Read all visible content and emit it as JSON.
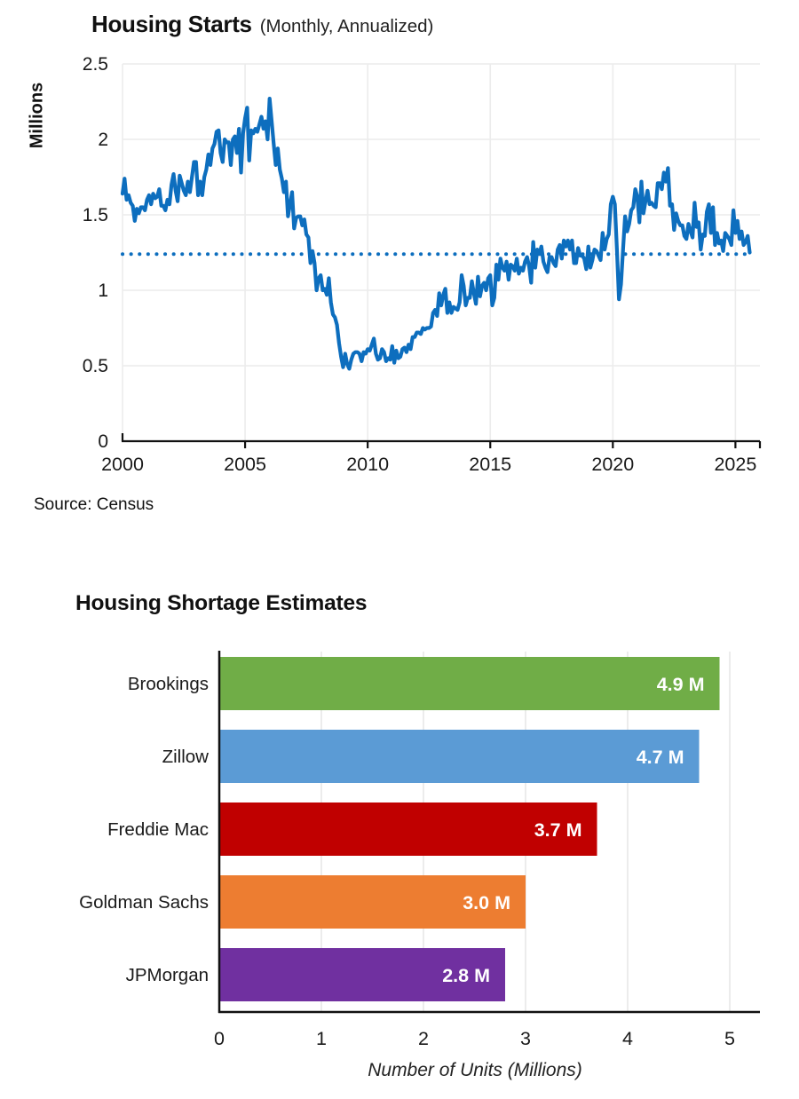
{
  "accent_colors": {
    "line_blue": "#0D6EBE",
    "grid_gray": "#ececec",
    "axis_black": "#111111",
    "bar_value_text": "#ffffff"
  },
  "chart_data": [
    {
      "type": "line",
      "title": "Housing Starts",
      "subtitle": "(Monthly, Annualized)",
      "ylabel": "Millions",
      "source": "Source: Census",
      "line_color": "#0D6EBE",
      "grid": true,
      "x_domain": [
        2000,
        2026
      ],
      "ylim": [
        0,
        2.5
      ],
      "x_ticks": [
        2000,
        2005,
        2010,
        2015,
        2020,
        2025
      ],
      "y_ticks": [
        0,
        0.5,
        1,
        1.5,
        2,
        2.5
      ],
      "reference_line": {
        "value": 1.24,
        "style": "dotted",
        "color": "#0D6EBE"
      },
      "series": [
        {
          "name": "Housing Starts (millions of units, SAAR)",
          "start_year": 2000,
          "frequency": "monthly",
          "values": [
            1.64,
            1.74,
            1.6,
            1.63,
            1.58,
            1.56,
            1.46,
            1.54,
            1.51,
            1.55,
            1.55,
            1.53,
            1.6,
            1.63,
            1.57,
            1.64,
            1.61,
            1.62,
            1.67,
            1.56,
            1.56,
            1.53,
            1.6,
            1.57,
            1.7,
            1.77,
            1.66,
            1.59,
            1.76,
            1.71,
            1.66,
            1.63,
            1.72,
            1.65,
            1.75,
            1.85,
            1.85,
            1.63,
            1.72,
            1.63,
            1.75,
            1.8,
            1.9,
            1.83,
            1.94,
            1.97,
            2.05,
            2.06,
            1.91,
            1.85,
            2.0,
            1.98,
            1.98,
            1.83,
            2.0,
            2.02,
            1.91,
            2.07,
            1.78,
            2.04,
            2.14,
            2.21,
            1.86,
            2.06,
            2.04,
            2.07,
            2.05,
            2.1,
            2.15,
            2.07,
            2.12,
            2.0,
            2.27,
            2.12,
            1.97,
            1.83,
            1.94,
            1.8,
            1.74,
            1.65,
            1.72,
            1.49,
            1.57,
            1.65,
            1.41,
            1.48,
            1.49,
            1.49,
            1.43,
            1.47,
            1.37,
            1.35,
            1.18,
            1.26,
            1.18,
            1.0,
            1.08,
            1.1,
            1.0,
            1.01,
            0.97,
            1.08,
            0.92,
            0.84,
            0.82,
            0.77,
            0.65,
            0.56,
            0.49,
            0.58,
            0.51,
            0.48,
            0.54,
            0.58,
            0.59,
            0.59,
            0.58,
            0.53,
            0.59,
            0.58,
            0.61,
            0.6,
            0.64,
            0.68,
            0.58,
            0.54,
            0.55,
            0.61,
            0.59,
            0.53,
            0.55,
            0.54,
            0.63,
            0.52,
            0.6,
            0.55,
            0.56,
            0.61,
            0.62,
            0.59,
            0.64,
            0.61,
            0.69,
            0.69,
            0.72,
            0.72,
            0.71,
            0.75,
            0.74,
            0.75,
            0.75,
            0.76,
            0.85,
            0.87,
            0.83,
            0.98,
            0.9,
            0.97,
            1.01,
            0.85,
            0.92,
            0.85,
            0.89,
            0.88,
            0.87,
            0.92,
            1.1,
            1.03,
            0.9,
            0.95,
            0.95,
            1.06,
            0.98,
            0.91,
            1.09,
            0.96,
            1.03,
            1.05,
            1.0,
            1.08,
            1.1,
            0.9,
            0.95,
            1.17,
            1.07,
            1.21,
            1.15,
            1.13,
            1.19,
            1.07,
            1.17,
            1.16,
            1.13,
            1.21,
            1.11,
            1.15,
            1.13,
            1.19,
            1.22,
            1.16,
            1.05,
            1.32,
            1.15,
            1.27,
            1.24,
            1.29,
            1.19,
            1.15,
            1.12,
            1.22,
            1.22,
            1.18,
            1.16,
            1.27,
            1.3,
            1.21,
            1.33,
            1.29,
            1.33,
            1.27,
            1.33,
            1.18,
            1.18,
            1.28,
            1.23,
            1.23,
            1.21,
            1.14,
            1.29,
            1.15,
            1.2,
            1.27,
            1.26,
            1.23,
            1.2,
            1.38,
            1.27,
            1.34,
            1.37,
            1.57,
            1.62,
            1.57,
            1.27,
            0.94,
            1.04,
            1.27,
            1.49,
            1.39,
            1.44,
            1.53,
            1.55,
            1.67,
            1.62,
            1.45,
            1.72,
            1.51,
            1.59,
            1.66,
            1.57,
            1.58,
            1.56,
            1.55,
            1.71,
            1.71,
            1.67,
            1.78,
            1.72,
            1.81,
            1.56,
            1.57,
            1.4,
            1.51,
            1.46,
            1.43,
            1.43,
            1.36,
            1.34,
            1.44,
            1.39,
            1.35,
            1.58,
            1.42,
            1.45,
            1.27,
            1.37,
            1.36,
            1.52,
            1.57,
            1.38,
            1.55,
            1.3,
            1.38,
            1.31,
            1.33,
            1.26,
            1.38,
            1.36,
            1.34,
            1.3,
            1.53,
            1.38,
            1.46,
            1.34,
            1.39,
            1.3,
            1.32,
            1.36,
            1.25
          ]
        }
      ]
    },
    {
      "type": "bar",
      "orientation": "horizontal",
      "title": "Housing Shortage Estimates",
      "xlabel": "Number of Units (Millions)",
      "xlim": [
        0,
        5
      ],
      "x_ticks": [
        0,
        1,
        2,
        3,
        4,
        5
      ],
      "grid": true,
      "categories": [
        "Brookings",
        "Zillow",
        "Freddie Mac",
        "Goldman Sachs",
        "JPMorgan"
      ],
      "values": [
        4.9,
        4.7,
        3.7,
        3.0,
        2.8
      ],
      "value_labels": [
        "4.9 M",
        "4.7 M",
        "3.7 M",
        "3.0 M",
        "2.8 M"
      ],
      "bar_colors": [
        "#70AD47",
        "#5B9BD5",
        "#C00000",
        "#ED7D31",
        "#7030A0"
      ]
    }
  ]
}
